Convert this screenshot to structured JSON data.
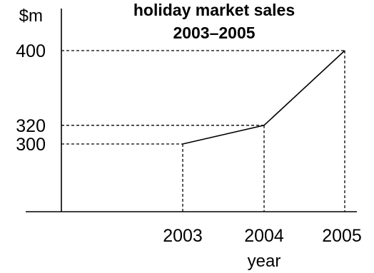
{
  "chart_data": {
    "type": "line",
    "title": "holiday market sales",
    "subtitle": "2003–2005",
    "ylabel": "$m",
    "xlabel": "year",
    "x": [
      "2003",
      "2004",
      "2005"
    ],
    "values": [
      300,
      320,
      400
    ],
    "ytick_labels": [
      "300",
      "320",
      "400"
    ],
    "grid": false,
    "legend": "none"
  }
}
